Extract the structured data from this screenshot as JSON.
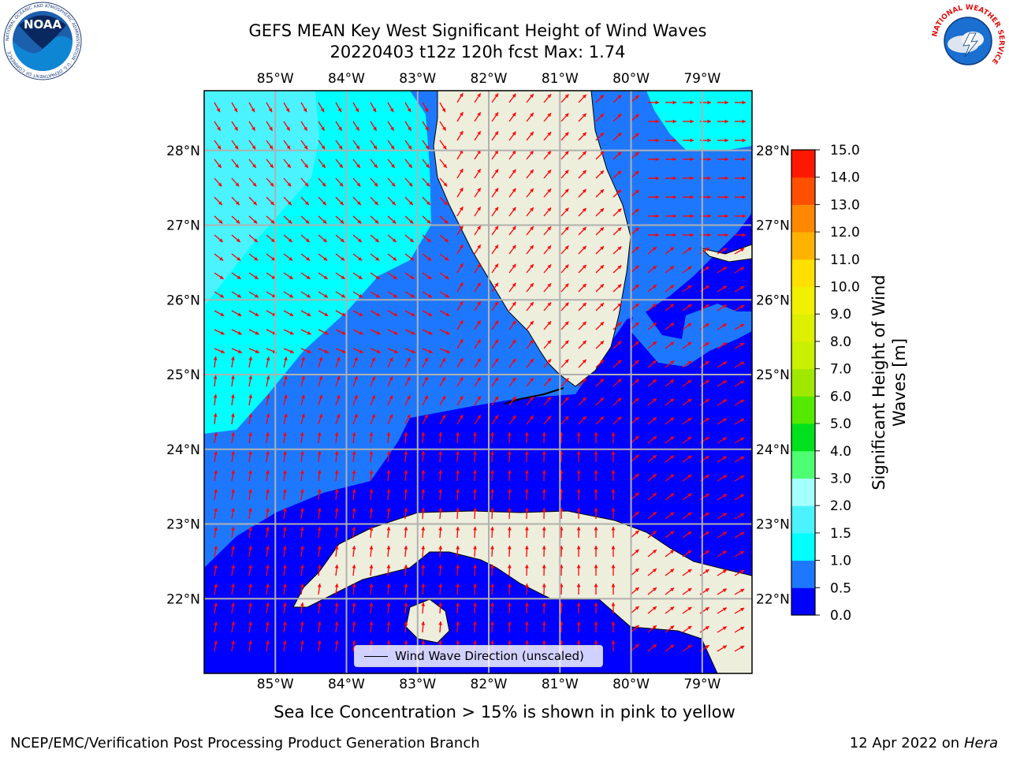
{
  "title": {
    "line1": "GEFS MEAN Key West Significant Height of Wind Waves",
    "line2": "20220403 t12z 120h fcst   Max: 1.74"
  },
  "map": {
    "lon_labels": [
      "85°W",
      "84°W",
      "83°W",
      "82°W",
      "81°W",
      "80°W",
      "79°W"
    ],
    "lat_labels": [
      "28°N",
      "27°N",
      "26°N",
      "25°N",
      "24°N",
      "23°N",
      "22°N"
    ],
    "lon_range": [
      -86.0,
      -78.3
    ],
    "lat_range": [
      21.0,
      28.8
    ],
    "legend_label": "Wind Wave Direction (unscaled)",
    "land_color": "#eeeedd",
    "arrow_color": "#ff0000",
    "grid_color": "#b0b0b0",
    "icons": [
      "noaa-logo-icon",
      "nws-logo-icon"
    ]
  },
  "colorbar": {
    "title_line1": "Significant Height of Wind",
    "title_line2": "Waves [m]",
    "ticks": [
      "0.0",
      "0.5",
      "1.0",
      "1.5",
      "2.0",
      "3.0",
      "4.0",
      "5.0",
      "6.0",
      "7.0",
      "8.0",
      "9.0",
      "10.0",
      "11.0",
      "12.0",
      "13.0",
      "14.0",
      "15.0"
    ],
    "colors": [
      "#0000ff",
      "#1e78ff",
      "#00ffff",
      "#4af3ff",
      "#a6ffff",
      "#4eff73",
      "#00e01c",
      "#55e800",
      "#a0e800",
      "#c8f000",
      "#dcf000",
      "#f0f000",
      "#ffe000",
      "#ffb300",
      "#ff8800",
      "#ff4f00",
      "#ff1800"
    ]
  },
  "footer": {
    "sea_ice_note": "Sea Ice Concentration > 15% is shown in pink to yellow",
    "credit": "NCEP/EMC/Verification Post Processing Product Generation Branch",
    "date": "12 Apr 2022 on",
    "host": "Hera"
  },
  "logos": {
    "noaa_text": "NOAA",
    "noaa_ring_text": "NATIONAL OCEANIC AND ATMOSPHERIC ADMINISTRATION · U.S. DEPARTMENT OF COMMERCE",
    "nws_ring_text": "NATIONAL WEATHER SERVICE"
  }
}
